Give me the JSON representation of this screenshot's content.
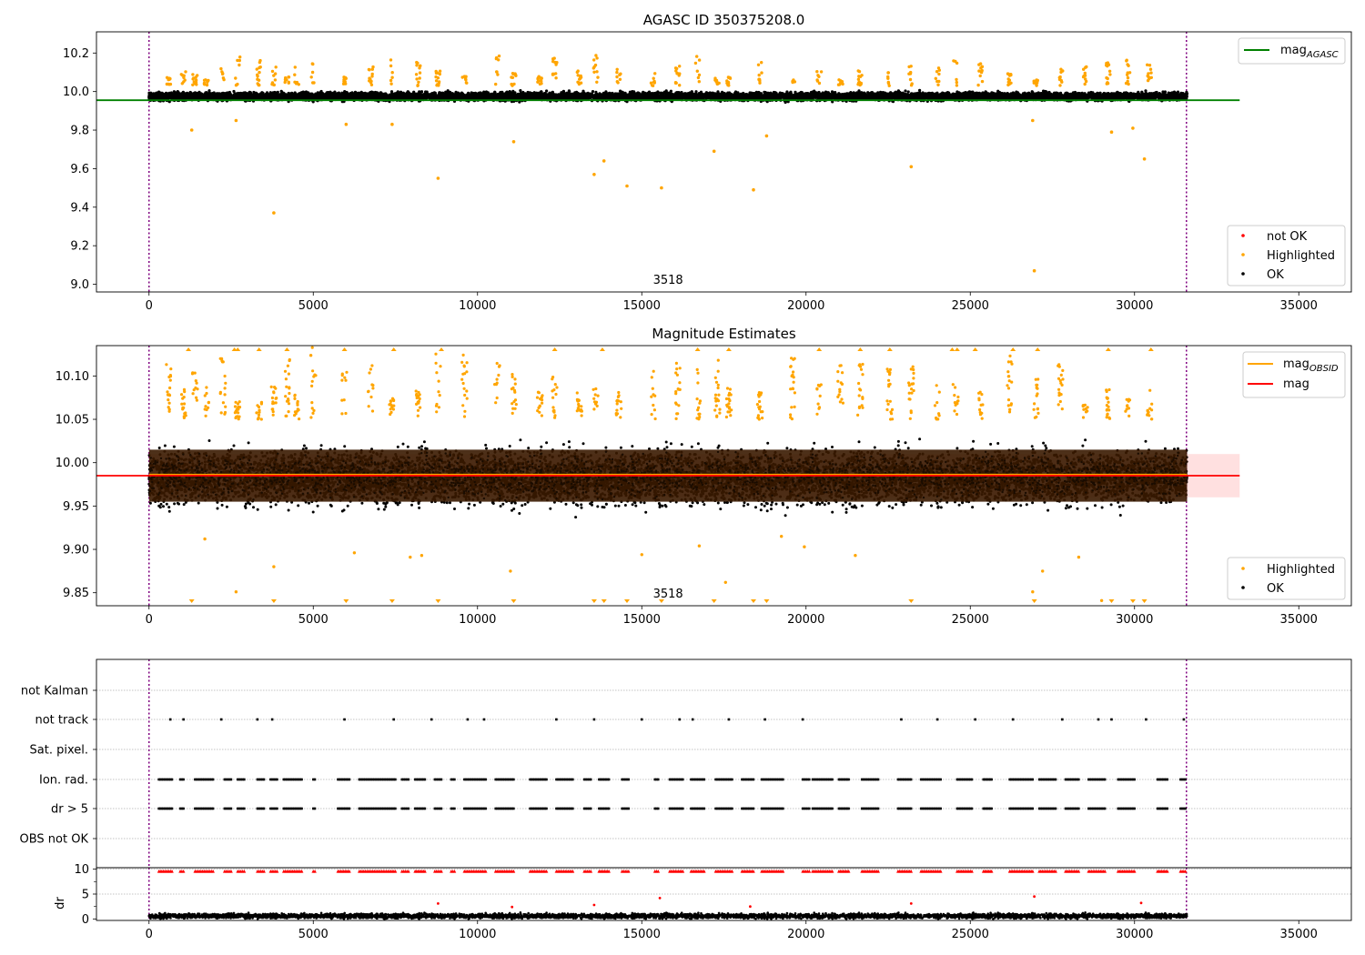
{
  "chart_data": [
    {
      "type": "scatter",
      "title": "AGASC ID 350375208.0",
      "xlim": [
        -1600,
        36600
      ],
      "ylim": [
        8.96,
        10.31
      ],
      "x_ticks": [
        0,
        5000,
        10000,
        15000,
        20000,
        25000,
        30000,
        35000
      ],
      "y_ticks": [
        9.0,
        9.2,
        9.4,
        9.6,
        9.8,
        10.0,
        10.2
      ],
      "y_tick_labels": [
        "9.0",
        "9.2",
        "9.4",
        "9.6",
        "9.8",
        "10.0",
        "10.2"
      ],
      "obs_boundaries": [
        0,
        31580
      ],
      "obsid_label": {
        "text": "3518",
        "x": 15800
      },
      "lines": [
        {
          "name": "mag",
          "subscript": "AGASC",
          "y": 9.955,
          "x_range": [
            -1600,
            33200
          ],
          "color": "#008000"
        }
      ],
      "ok_band": {
        "y_min": 9.925,
        "y_max": 10.03,
        "x_range": [
          0,
          31600
        ]
      },
      "series": [
        {
          "name": "not OK",
          "color": "#ff0000",
          "points": []
        },
        {
          "name": "Highlighted",
          "color": "#ffa500",
          "points": [
            [
              1300,
              9.8
            ],
            [
              2650,
              9.85
            ],
            [
              3800,
              9.37
            ],
            [
              6000,
              9.83
            ],
            [
              7400,
              9.83
            ],
            [
              8800,
              9.55
            ],
            [
              11100,
              9.74
            ],
            [
              13550,
              9.57
            ],
            [
              13850,
              9.64
            ],
            [
              14550,
              9.51
            ],
            [
              15600,
              9.5
            ],
            [
              17200,
              9.69
            ],
            [
              18400,
              9.49
            ],
            [
              18800,
              9.77
            ],
            [
              23200,
              9.61
            ],
            [
              26900,
              9.85
            ],
            [
              26950,
              9.07
            ],
            [
              29300,
              9.79
            ],
            [
              29950,
              9.81
            ],
            [
              30300,
              9.65
            ]
          ]
        },
        {
          "name": "OK",
          "color": "#000000",
          "points": []
        }
      ],
      "highlight_groups": [
        600,
        1050,
        1400,
        1750,
        2250,
        2700,
        3350,
        3800,
        4200,
        4500,
        5000,
        5950,
        6750,
        7400,
        8200,
        8800,
        9600,
        10600,
        11100,
        11900,
        12350,
        13100,
        13600,
        14300,
        15350,
        16100,
        16700,
        17300,
        17650,
        18600,
        19600,
        20400,
        21050,
        21650,
        22550,
        23200,
        24000,
        24550,
        25300,
        26200,
        27000,
        27750,
        28500,
        29200,
        29800,
        30450
      ],
      "legend": [
        {
          "label": "mag",
          "subscript": "AGASC",
          "marker": "line",
          "color": "#008000",
          "location": "top-right"
        }
      ],
      "legend_points": [
        {
          "label": "not OK",
          "marker": "dot",
          "color": "#ff0000"
        },
        {
          "label": "Highlighted",
          "marker": "dot",
          "color": "#ffa500"
        },
        {
          "label": "OK",
          "marker": "dot",
          "color": "#000000"
        }
      ]
    },
    {
      "type": "scatter",
      "title": "Magnitude Estimates",
      "xlim": [
        -1600,
        36600
      ],
      "ylim": [
        9.835,
        10.135
      ],
      "x_ticks": [
        0,
        5000,
        10000,
        15000,
        20000,
        25000,
        30000,
        35000
      ],
      "y_ticks": [
        9.85,
        9.9,
        9.95,
        10.0,
        10.05,
        10.1
      ],
      "y_tick_labels": [
        "9.85",
        "9.90",
        "9.95",
        "10.00",
        "10.05",
        "10.10"
      ],
      "obs_boundaries": [
        0,
        31580
      ],
      "obsid_label": {
        "text": "3518",
        "x": 15800
      },
      "lines": [
        {
          "name": "mag",
          "subscript": "OBSID",
          "y": 9.986,
          "x_range": [
            0,
            31600
          ],
          "color": "#ffa500"
        },
        {
          "name": "mag",
          "y": 9.985,
          "x_range": [
            -1600,
            33200
          ],
          "color": "#ff0000"
        }
      ],
      "error_band": {
        "y_min": 9.96,
        "y_max": 10.01,
        "x_range": [
          0,
          33200
        ],
        "color": "#ff0000",
        "alpha": 0.12
      },
      "dense_band": {
        "y_min": 9.955,
        "y_max": 10.015,
        "color": "#3a1a00"
      },
      "series": [
        {
          "name": "Highlighted",
          "color": "#ffa500",
          "points": [
            [
              1700,
              9.912
            ],
            [
              2650,
              9.851
            ],
            [
              3800,
              9.88
            ],
            [
              6250,
              9.896
            ],
            [
              7950,
              9.891
            ],
            [
              8300,
              9.893
            ],
            [
              11000,
              9.875
            ],
            [
              15000,
              9.894
            ],
            [
              16750,
              9.904
            ],
            [
              17550,
              9.862
            ],
            [
              19250,
              9.915
            ],
            [
              19950,
              9.903
            ],
            [
              21500,
              9.893
            ],
            [
              26900,
              9.851
            ],
            [
              27200,
              9.875
            ],
            [
              28300,
              9.891
            ],
            [
              29000,
              9.841
            ]
          ]
        },
        {
          "name": "OK",
          "color": "#000000",
          "points": []
        }
      ],
      "clipped_low": [
        1300,
        3800,
        6000,
        7400,
        8800,
        11100,
        13550,
        13850,
        14550,
        15600,
        17200,
        18400,
        18800,
        23200,
        26950,
        29300,
        29950,
        30300
      ],
      "clipped_high": [
        1200,
        2600,
        2700,
        3350,
        4200,
        5950,
        7450,
        8900,
        12350,
        13800,
        16700,
        17650,
        20400,
        21650,
        22550,
        24450,
        24600,
        25150,
        26300,
        27050,
        29200,
        30500
      ],
      "legend": [
        {
          "label": "mag",
          "subscript": "OBSID",
          "marker": "line",
          "color": "#ffa500",
          "location": "top-right"
        },
        {
          "label": "mag",
          "marker": "line",
          "color": "#ff0000"
        }
      ],
      "legend_points": [
        {
          "label": "Highlighted",
          "marker": "dot",
          "color": "#ffa500"
        },
        {
          "label": "OK",
          "marker": "dot",
          "color": "#000000"
        }
      ]
    },
    {
      "type": "scatter",
      "title": "",
      "xlim": [
        -1600,
        36600
      ],
      "categories": [
        "not Kalman",
        "not track",
        "Sat. pixel.",
        "Ion. rad.",
        "dr > 5",
        "OBS not OK"
      ],
      "obs_boundaries": [
        0,
        31580
      ],
      "flag_points": {
        "not Kalman": [],
        "not track": [
          650,
          1050,
          2200,
          3300,
          3750,
          5950,
          7450,
          8600,
          9700,
          10200,
          12400,
          13550,
          15000,
          16150,
          16550,
          17650,
          18750,
          19900,
          22900,
          24000,
          25150,
          26300,
          27800,
          28900,
          29300,
          30350,
          31500
        ],
        "Sat. pixel.": [],
        "Ion. rad.": [],
        "dr > 5": [],
        "OBS not OK": []
      },
      "flag_clusters": [
        [
          300,
          700
        ],
        [
          950,
          1050
        ],
        [
          1400,
          1950
        ],
        [
          2300,
          2500
        ],
        [
          2700,
          2900
        ],
        [
          3300,
          3500
        ],
        [
          3700,
          3900
        ],
        [
          4100,
          4650
        ],
        [
          5000,
          5050
        ],
        [
          5750,
          6100
        ],
        [
          6400,
          7500
        ],
        [
          7700,
          7900
        ],
        [
          8100,
          8400
        ],
        [
          8700,
          8900
        ],
        [
          9200,
          9300
        ],
        [
          9600,
          10250
        ],
        [
          10550,
          11100
        ],
        [
          11600,
          12100
        ],
        [
          12400,
          12900
        ],
        [
          13250,
          13450
        ],
        [
          13700,
          14000
        ],
        [
          14400,
          14600
        ],
        [
          15400,
          15500
        ],
        [
          15850,
          16250
        ],
        [
          16500,
          16900
        ],
        [
          17250,
          17750
        ],
        [
          18050,
          18400
        ],
        [
          18650,
          19300
        ],
        [
          19900,
          20100
        ],
        [
          20200,
          20800
        ],
        [
          21000,
          21300
        ],
        [
          21700,
          22200
        ],
        [
          22800,
          23200
        ],
        [
          23500,
          24100
        ],
        [
          24600,
          25050
        ],
        [
          25400,
          25650
        ],
        [
          26200,
          26900
        ],
        [
          27100,
          27600
        ],
        [
          27900,
          28300
        ],
        [
          28600,
          29100
        ],
        [
          29500,
          30000
        ],
        [
          30700,
          31000
        ],
        [
          31400,
          31550
        ]
      ]
    },
    {
      "type": "scatter",
      "title": "",
      "ylabel": "dr",
      "xlim": [
        -1600,
        36600
      ],
      "ylim": [
        -0.3,
        10.3
      ],
      "x_ticks": [
        0,
        5000,
        10000,
        15000,
        20000,
        25000,
        30000,
        35000
      ],
      "y_ticks": [
        0,
        5,
        10
      ],
      "y_tick_labels": [
        "0",
        "5",
        "10"
      ],
      "obs_boundaries": [
        0,
        31580
      ],
      "dense_band": {
        "y_min": 0,
        "y_max": 1.6,
        "color": "#000000"
      },
      "series": [
        {
          "name": "clipped",
          "color": "#ff0000",
          "y": 9.6
        },
        {
          "name": "outliers",
          "color": "#ff0000",
          "points": [
            [
              8800,
              3.1
            ],
            [
              11050,
              2.4
            ],
            [
              13550,
              2.8
            ],
            [
              15550,
              4.2
            ],
            [
              18300,
              2.5
            ],
            [
              23200,
              3.1
            ],
            [
              26950,
              4.5
            ],
            [
              30200,
              3.2
            ]
          ]
        }
      ]
    }
  ],
  "ui": {
    "colors": {
      "purple_line": "#800080",
      "axes": "#000000",
      "grid": "#b0b0b0"
    }
  }
}
